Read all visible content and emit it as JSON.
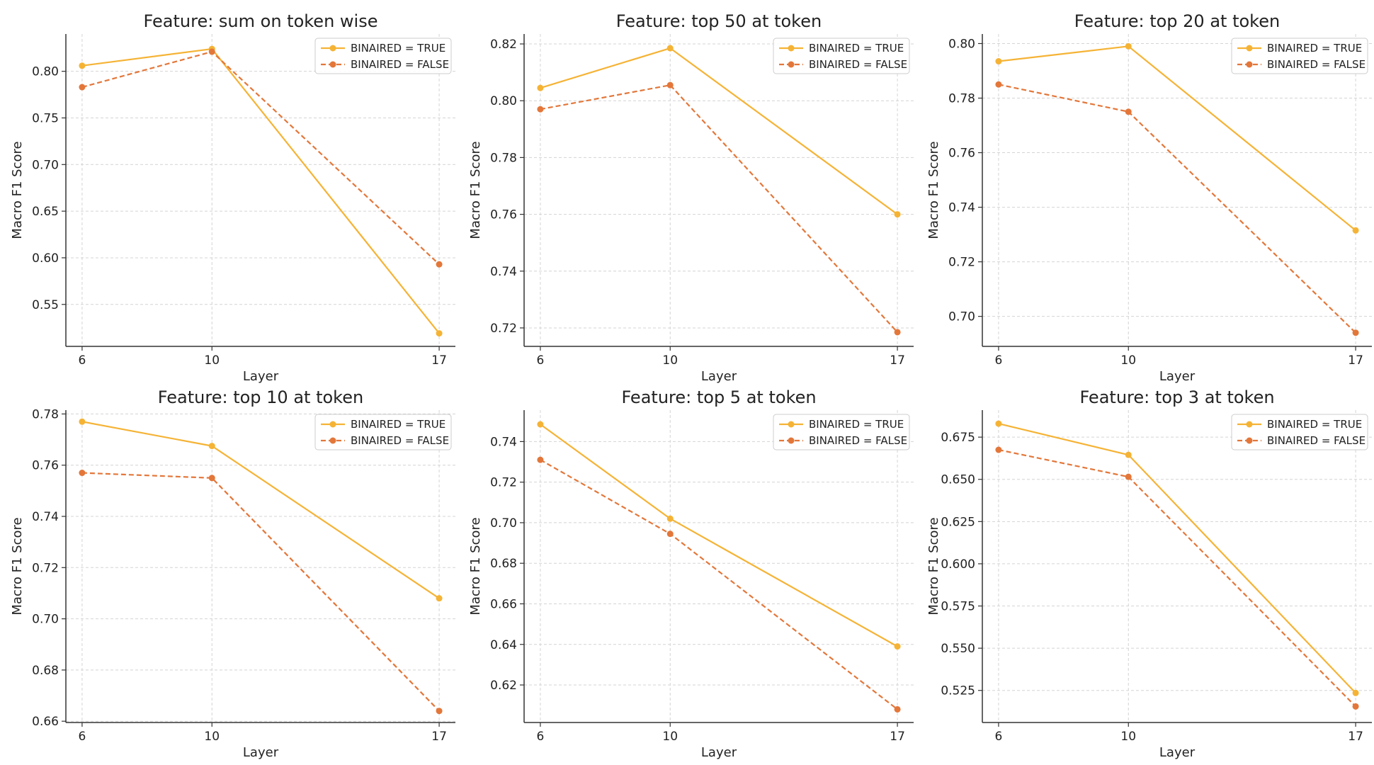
{
  "figure": {
    "series_styles": [
      {
        "color": "#F5B335",
        "dash": "solid"
      },
      {
        "color": "#E3773A",
        "dash": "dashed"
      }
    ]
  },
  "chart_data": [
    {
      "type": "line",
      "title": "Feature: sum on token wise",
      "xlabel": "Layer",
      "ylabel": "Macro F1 Score",
      "x": [
        6,
        10,
        17
      ],
      "xticks": [
        6,
        10,
        17
      ],
      "xlim": [
        5.5,
        17.5
      ],
      "ylim": [
        0.505,
        0.84
      ],
      "yticks": [
        0.55,
        0.6,
        0.65,
        0.7,
        0.75,
        0.8
      ],
      "ytick_decimals": 2,
      "grid": true,
      "legend_position": "top-right",
      "series": [
        {
          "name": "BINAIRED = TRUE",
          "values": [
            0.806,
            0.824,
            0.519
          ]
        },
        {
          "name": "BINAIRED = FALSE",
          "values": [
            0.783,
            0.821,
            0.593
          ]
        }
      ]
    },
    {
      "type": "line",
      "title": "Feature: top 50 at token",
      "xlabel": "Layer",
      "ylabel": "Macro F1 Score",
      "x": [
        6,
        10,
        17
      ],
      "xticks": [
        6,
        10,
        17
      ],
      "xlim": [
        5.5,
        17.5
      ],
      "ylim": [
        0.7135,
        0.8235
      ],
      "yticks": [
        0.72,
        0.74,
        0.76,
        0.78,
        0.8,
        0.82
      ],
      "ytick_decimals": 2,
      "grid": true,
      "legend_position": "top-right",
      "series": [
        {
          "name": "BINAIRED = TRUE",
          "values": [
            0.8045,
            0.8185,
            0.76
          ]
        },
        {
          "name": "BINAIRED = FALSE",
          "values": [
            0.797,
            0.8055,
            0.7185
          ]
        }
      ]
    },
    {
      "type": "line",
      "title": "Feature: top 20 at token",
      "xlabel": "Layer",
      "ylabel": "Macro F1 Score",
      "x": [
        6,
        10,
        17
      ],
      "xticks": [
        6,
        10,
        17
      ],
      "xlim": [
        5.5,
        17.5
      ],
      "ylim": [
        0.689,
        0.8035
      ],
      "yticks": [
        0.7,
        0.72,
        0.74,
        0.76,
        0.78,
        0.8
      ],
      "ytick_decimals": 2,
      "grid": true,
      "legend_position": "top-right",
      "series": [
        {
          "name": "BINAIRED = TRUE",
          "values": [
            0.7935,
            0.799,
            0.7315
          ]
        },
        {
          "name": "BINAIRED = FALSE",
          "values": [
            0.785,
            0.775,
            0.694
          ]
        }
      ]
    },
    {
      "type": "line",
      "title": "Feature: top 10 at token",
      "xlabel": "Layer",
      "ylabel": "Macro F1 Score",
      "x": [
        6,
        10,
        17
      ],
      "xticks": [
        6,
        10,
        17
      ],
      "xlim": [
        5.5,
        17.5
      ],
      "ylim": [
        0.6595,
        0.7815
      ],
      "yticks": [
        0.66,
        0.68,
        0.7,
        0.72,
        0.74,
        0.76,
        0.78
      ],
      "ytick_decimals": 2,
      "grid": true,
      "legend_position": "top-right",
      "series": [
        {
          "name": "BINAIRED = TRUE",
          "values": [
            0.777,
            0.7675,
            0.708
          ]
        },
        {
          "name": "BINAIRED = FALSE",
          "values": [
            0.757,
            0.755,
            0.664
          ]
        }
      ]
    },
    {
      "type": "line",
      "title": "Feature: top 5 at token",
      "xlabel": "Layer",
      "ylabel": "Macro F1 Score",
      "x": [
        6,
        10,
        17
      ],
      "xticks": [
        6,
        10,
        17
      ],
      "xlim": [
        5.5,
        17.5
      ],
      "ylim": [
        0.6015,
        0.7555
      ],
      "yticks": [
        0.62,
        0.64,
        0.66,
        0.68,
        0.7,
        0.72,
        0.74
      ],
      "ytick_decimals": 2,
      "grid": true,
      "legend_position": "top-right",
      "series": [
        {
          "name": "BINAIRED = TRUE",
          "values": [
            0.7485,
            0.702,
            0.639
          ]
        },
        {
          "name": "BINAIRED = FALSE",
          "values": [
            0.731,
            0.6945,
            0.608
          ]
        }
      ]
    },
    {
      "type": "line",
      "title": "Feature: top 3 at token",
      "xlabel": "Layer",
      "ylabel": "Macro F1 Score",
      "x": [
        6,
        10,
        17
      ],
      "xticks": [
        6,
        10,
        17
      ],
      "xlim": [
        5.5,
        17.5
      ],
      "ylim": [
        0.506,
        0.691
      ],
      "yticks": [
        0.525,
        0.55,
        0.575,
        0.6,
        0.625,
        0.65,
        0.675
      ],
      "ytick_decimals": 3,
      "grid": true,
      "legend_position": "top-right",
      "series": [
        {
          "name": "BINAIRED = TRUE",
          "values": [
            0.683,
            0.6645,
            0.5235
          ]
        },
        {
          "name": "BINAIRED = FALSE",
          "values": [
            0.6675,
            0.6515,
            0.5155
          ]
        }
      ]
    }
  ]
}
